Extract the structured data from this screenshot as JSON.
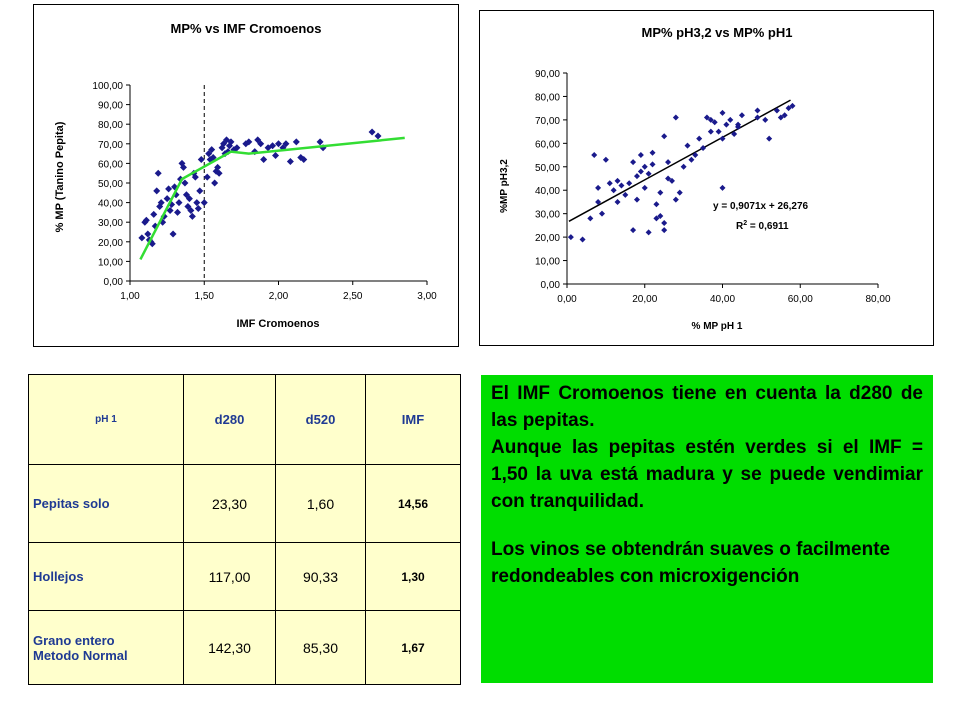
{
  "chart_data": [
    {
      "type": "scatter",
      "title": "MP% vs IMF Cromoenos",
      "xlabel": "IMF Cromoenos",
      "ylabel": "% MP (Tanino Pepita)",
      "xlim": [
        1.0,
        3.0
      ],
      "ylim": [
        0,
        100
      ],
      "x_ticks": [
        "1,00",
        "1,50",
        "2,00",
        "2,50",
        "3,00"
      ],
      "y_ticks": [
        "0,00",
        "10,00",
        "20,00",
        "30,00",
        "40,00",
        "50,00",
        "60,00",
        "70,00",
        "80,00",
        "90,00",
        "100,00"
      ],
      "grid": false,
      "vertical_reference_line_x": 1.5,
      "series": [
        {
          "marker_color": "#1a1a8c",
          "points": [
            [
              1.08,
              22
            ],
            [
              1.1,
              30
            ],
            [
              1.11,
              31
            ],
            [
              1.12,
              24
            ],
            [
              1.13,
              21
            ],
            [
              1.14,
              20
            ],
            [
              1.15,
              19
            ],
            [
              1.16,
              34
            ],
            [
              1.17,
              28
            ],
            [
              1.18,
              46
            ],
            [
              1.19,
              55
            ],
            [
              1.2,
              38
            ],
            [
              1.21,
              40
            ],
            [
              1.22,
              30
            ],
            [
              1.23,
              33
            ],
            [
              1.25,
              42
            ],
            [
              1.26,
              47
            ],
            [
              1.27,
              36
            ],
            [
              1.28,
              39
            ],
            [
              1.29,
              24
            ],
            [
              1.3,
              48
            ],
            [
              1.31,
              44
            ],
            [
              1.32,
              35
            ],
            [
              1.33,
              40
            ],
            [
              1.34,
              52
            ],
            [
              1.35,
              60
            ],
            [
              1.36,
              58
            ],
            [
              1.37,
              50
            ],
            [
              1.38,
              44
            ],
            [
              1.39,
              38
            ],
            [
              1.4,
              42
            ],
            [
              1.41,
              36
            ],
            [
              1.42,
              33
            ],
            [
              1.43,
              55
            ],
            [
              1.44,
              53
            ],
            [
              1.45,
              40
            ],
            [
              1.46,
              37
            ],
            [
              1.47,
              46
            ],
            [
              1.48,
              62
            ],
            [
              1.5,
              40
            ],
            [
              1.52,
              53
            ],
            [
              1.53,
              65
            ],
            [
              1.54,
              62
            ],
            [
              1.55,
              67
            ],
            [
              1.56,
              63
            ],
            [
              1.57,
              50
            ],
            [
              1.58,
              56
            ],
            [
              1.59,
              58
            ],
            [
              1.6,
              55
            ],
            [
              1.62,
              68
            ],
            [
              1.63,
              70
            ],
            [
              1.64,
              65
            ],
            [
              1.65,
              72
            ],
            [
              1.66,
              66
            ],
            [
              1.67,
              69
            ],
            [
              1.68,
              71
            ],
            [
              1.7,
              67
            ],
            [
              1.72,
              68
            ],
            [
              1.78,
              70
            ],
            [
              1.8,
              71
            ],
            [
              1.84,
              66
            ],
            [
              1.86,
              72
            ],
            [
              1.88,
              70
            ],
            [
              1.9,
              62
            ],
            [
              1.93,
              68
            ],
            [
              1.96,
              69
            ],
            [
              1.98,
              64
            ],
            [
              2.0,
              70
            ],
            [
              2.03,
              68
            ],
            [
              2.05,
              70
            ],
            [
              2.08,
              61
            ],
            [
              2.12,
              71
            ],
            [
              2.15,
              63
            ],
            [
              2.17,
              62
            ],
            [
              2.28,
              71
            ],
            [
              2.3,
              68
            ],
            [
              2.63,
              76
            ],
            [
              2.67,
              74
            ]
          ],
          "trend_polyline": [
            [
              1.07,
              11
            ],
            [
              1.35,
              52
            ],
            [
              1.68,
              66
            ],
            [
              1.8,
              65
            ],
            [
              2.85,
              73
            ]
          ]
        }
      ]
    },
    {
      "type": "scatter",
      "title": "MP% pH3,2 vs MP% pH1",
      "xlabel": "% MP pH 1",
      "ylabel": "%MP pH3,2",
      "xlim": [
        0,
        80
      ],
      "ylim": [
        0,
        90
      ],
      "x_ticks": [
        "0,00",
        "20,00",
        "40,00",
        "60,00",
        "80,00"
      ],
      "y_ticks": [
        "0,00",
        "10,00",
        "20,00",
        "30,00",
        "40,00",
        "50,00",
        "60,00",
        "70,00",
        "80,00",
        "90,00"
      ],
      "grid": false,
      "equation": "y = 0,9071x + 26,276",
      "r2_prefix": "R",
      "r2_sup": "2",
      "r2_value": " = 0,6911",
      "trendline": {
        "slope": 0.9071,
        "intercept": 26.276,
        "x_range": [
          0.5,
          57.5
        ]
      },
      "series": [
        {
          "marker_color": "#1a1a8c",
          "points": [
            [
              1,
              20
            ],
            [
              4,
              19
            ],
            [
              6,
              28
            ],
            [
              7,
              55
            ],
            [
              8,
              35
            ],
            [
              8,
              41
            ],
            [
              9,
              30
            ],
            [
              10,
              53
            ],
            [
              11,
              43
            ],
            [
              12,
              40
            ],
            [
              13,
              35
            ],
            [
              13,
              44
            ],
            [
              14,
              42
            ],
            [
              15,
              38
            ],
            [
              16,
              43
            ],
            [
              17,
              52
            ],
            [
              17,
              23
            ],
            [
              18,
              46
            ],
            [
              18,
              36
            ],
            [
              19,
              48
            ],
            [
              19,
              55
            ],
            [
              20,
              50
            ],
            [
              20,
              41
            ],
            [
              21,
              22
            ],
            [
              21,
              47
            ],
            [
              22,
              56
            ],
            [
              22,
              51
            ],
            [
              23,
              34
            ],
            [
              23,
              28
            ],
            [
              24,
              29
            ],
            [
              24,
              39
            ],
            [
              25,
              23
            ],
            [
              25,
              26
            ],
            [
              25,
              63
            ],
            [
              26,
              45
            ],
            [
              26,
              52
            ],
            [
              27,
              44
            ],
            [
              28,
              71
            ],
            [
              28,
              36
            ],
            [
              29,
              39
            ],
            [
              30,
              50
            ],
            [
              31,
              59
            ],
            [
              32,
              53
            ],
            [
              33,
              55
            ],
            [
              34,
              62
            ],
            [
              35,
              58
            ],
            [
              36,
              71
            ],
            [
              37,
              70
            ],
            [
              37,
              65
            ],
            [
              38,
              69
            ],
            [
              39,
              65
            ],
            [
              40,
              62
            ],
            [
              40,
              73
            ],
            [
              40,
              41
            ],
            [
              41,
              68
            ],
            [
              42,
              70
            ],
            [
              43,
              64
            ],
            [
              44,
              67
            ],
            [
              44,
              68
            ],
            [
              45,
              72
            ],
            [
              49,
              71
            ],
            [
              49,
              74
            ],
            [
              51,
              70
            ],
            [
              52,
              62
            ],
            [
              54,
              74
            ],
            [
              55,
              71
            ],
            [
              56,
              72
            ],
            [
              57,
              75
            ],
            [
              58,
              76
            ]
          ]
        }
      ]
    }
  ],
  "table": {
    "header": [
      "pH 1",
      "d280",
      "d520",
      "IMF"
    ],
    "rows": [
      [
        "Pepitas solo",
        "23,30",
        "1,60",
        "14,56"
      ],
      [
        "Hollejos",
        "117,00",
        "90,33",
        "1,30"
      ],
      [
        "Grano entero\nMetodo Normal",
        "142,30",
        "85,30",
        "1,67"
      ]
    ]
  },
  "notes": {
    "p1": "El IMF Cromoenos tiene en cuenta la d280 de las pepitas.",
    "p2": "Aunque las pepitas estén verdes si el IMF = 1,50 la uva está madura y se puede vendimiar con tranquilidad.",
    "p3": "Los vinos se obtendrán suaves o facilmente redondeables con microxigención"
  },
  "colors": {
    "marker": "#1a1a8c",
    "trend_green": "#33dd33",
    "table_bg": "#ffffcc",
    "table_text": "#1f3a93",
    "notes_bg": "#00dd00"
  }
}
